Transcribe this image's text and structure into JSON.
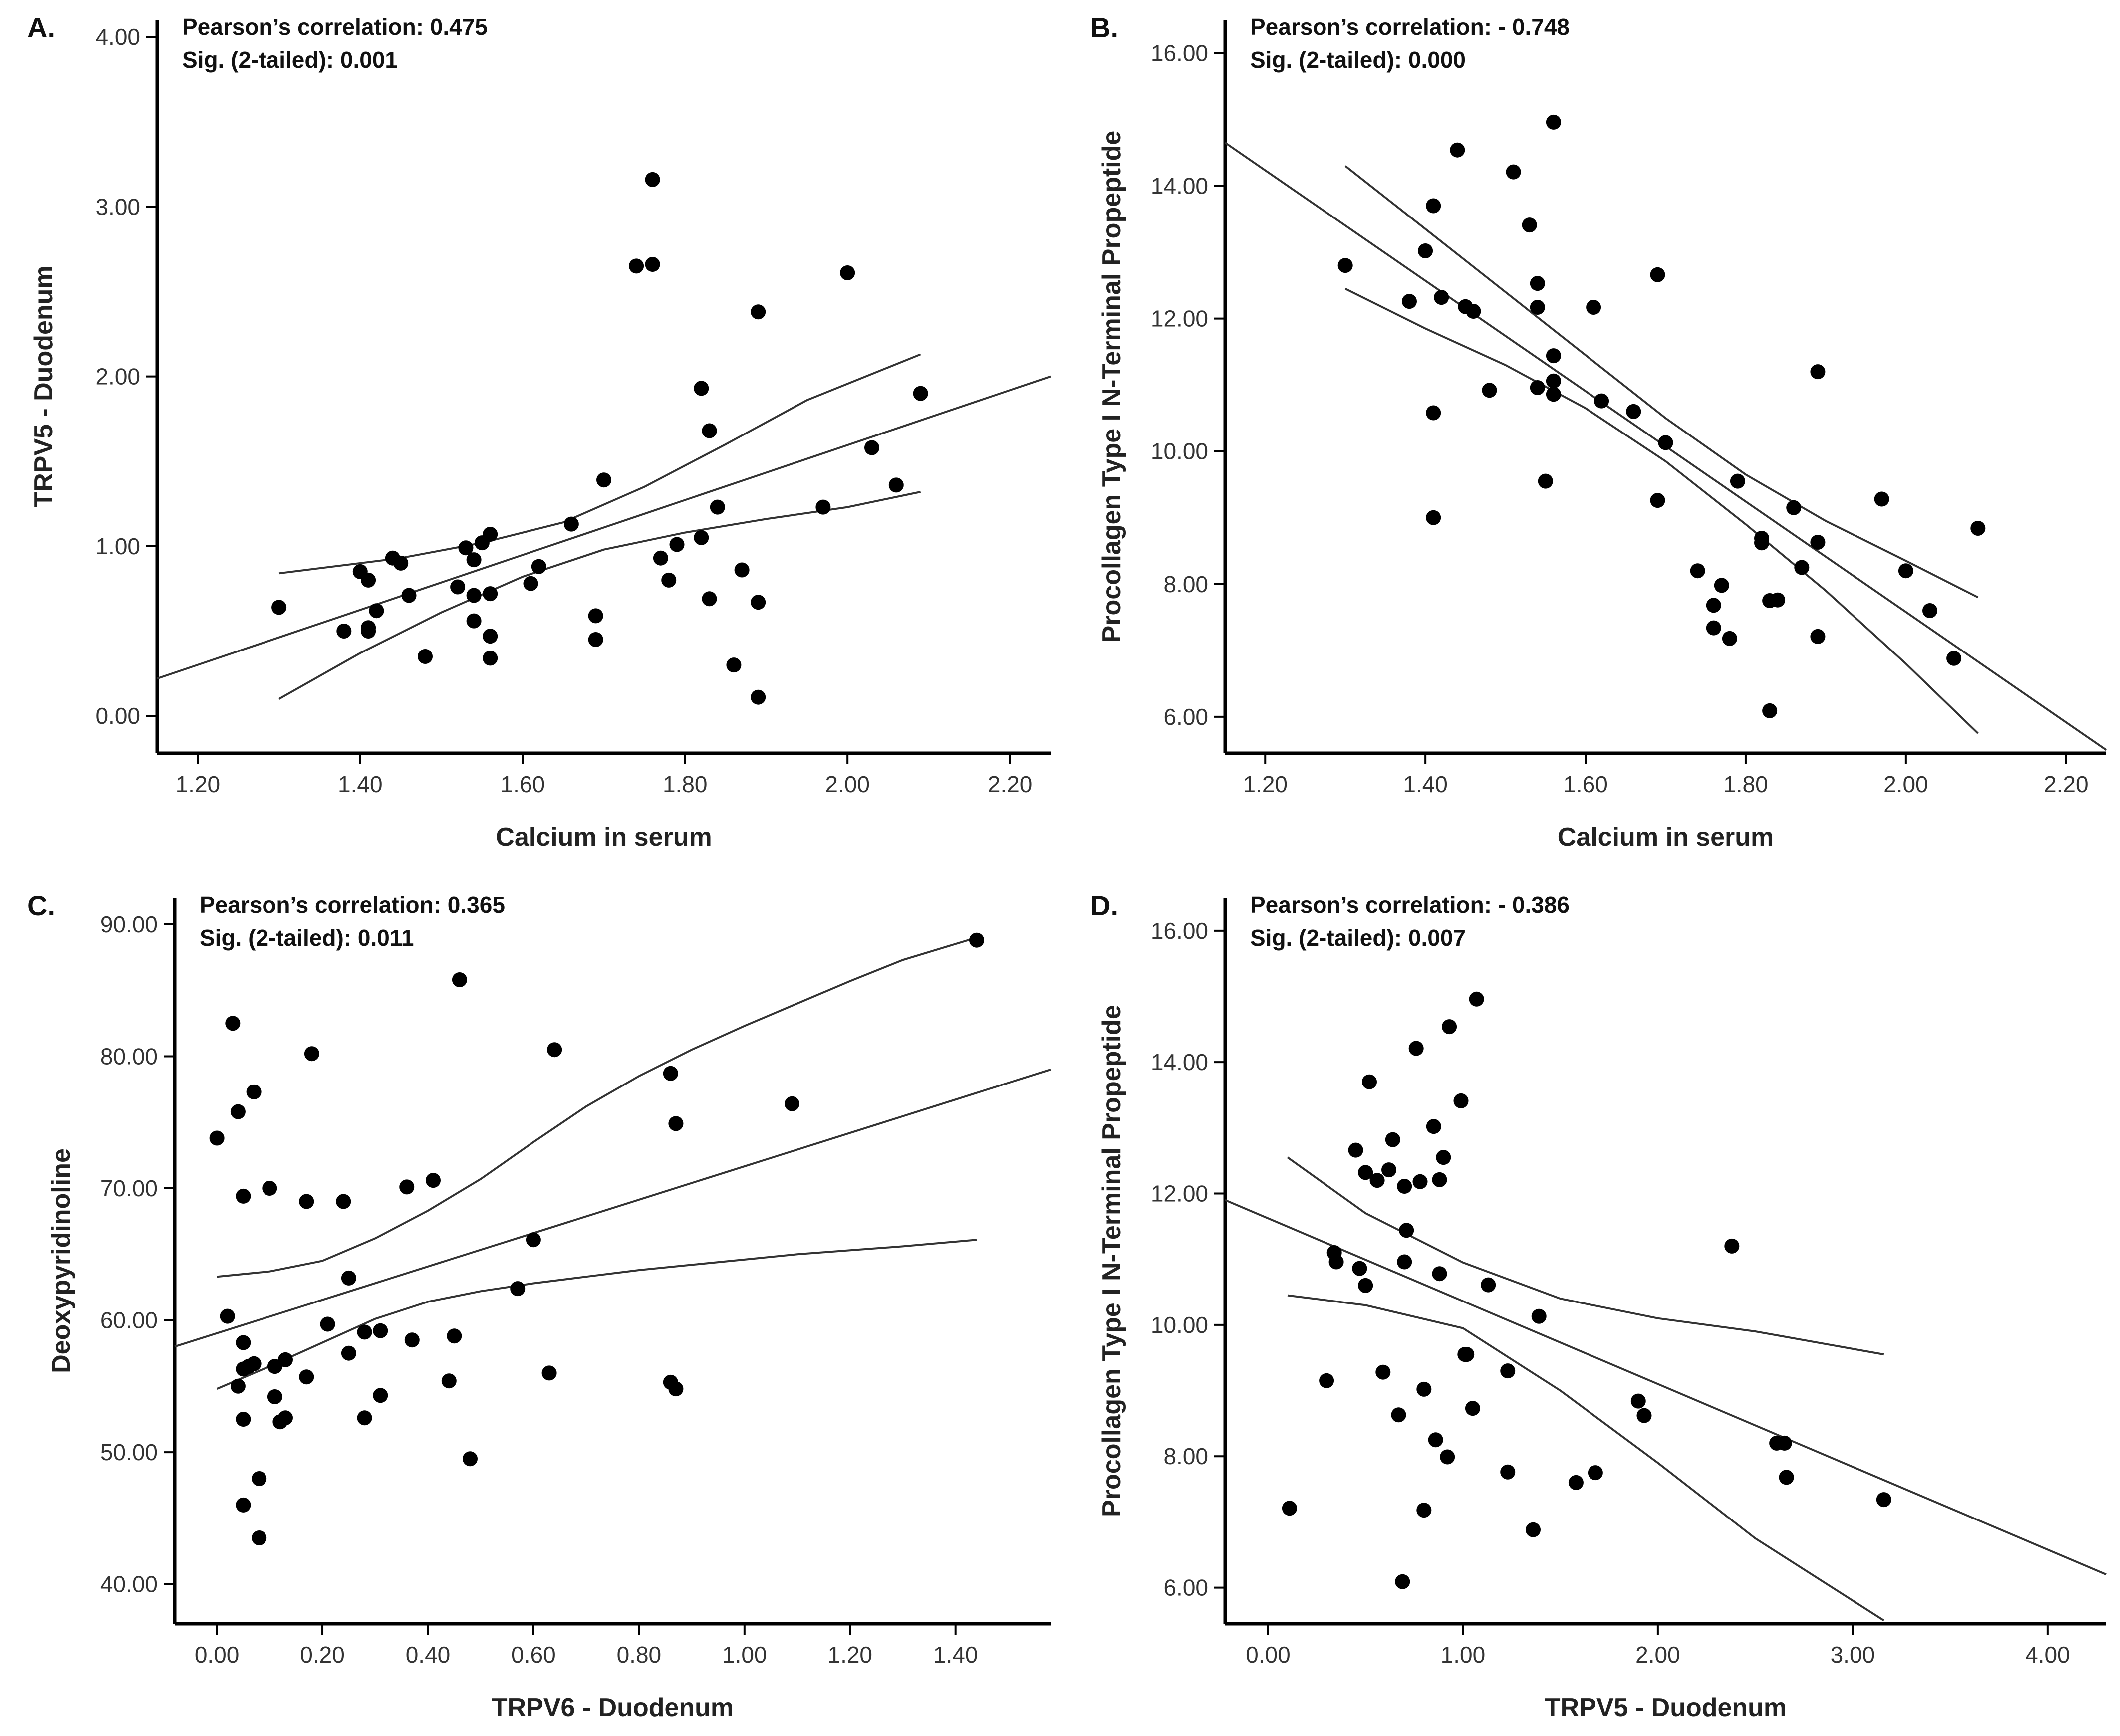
{
  "chart_data": [
    {
      "type": "scatter",
      "panel_label": "A.",
      "stat_line1": "Pearson’s correlation: 0.475",
      "stat_line2": "Sig. (2-tailed): 0.001",
      "xlabel": "Calcium in serum",
      "ylabel": "TRPV5 - Duodenum",
      "xlim": [
        1.15,
        2.25
      ],
      "ylim": [
        -0.22,
        4.1
      ],
      "xticks": [
        "1.20",
        "1.40",
        "1.60",
        "1.80",
        "2.00",
        "2.20"
      ],
      "yticks": [
        "0.00",
        "1.00",
        "2.00",
        "3.00",
        "4.00"
      ],
      "fit_line": [
        [
          1.15,
          0.22
        ],
        [
          2.25,
          2.0
        ]
      ],
      "ci_upper": [
        [
          1.3,
          0.84
        ],
        [
          1.45,
          0.93
        ],
        [
          1.55,
          1.02
        ],
        [
          1.65,
          1.14
        ],
        [
          1.75,
          1.35
        ],
        [
          1.85,
          1.6
        ],
        [
          1.95,
          1.86
        ],
        [
          2.09,
          2.13
        ]
      ],
      "ci_lower": [
        [
          1.3,
          0.1
        ],
        [
          1.4,
          0.37
        ],
        [
          1.5,
          0.61
        ],
        [
          1.6,
          0.82
        ],
        [
          1.7,
          0.98
        ],
        [
          1.8,
          1.08
        ],
        [
          1.9,
          1.16
        ],
        [
          2.0,
          1.23
        ],
        [
          2.09,
          1.32
        ]
      ],
      "points": [
        [
          1.3,
          0.64
        ],
        [
          1.38,
          0.5
        ],
        [
          1.4,
          0.85
        ],
        [
          1.41,
          0.8
        ],
        [
          1.41,
          0.52
        ],
        [
          1.41,
          0.5
        ],
        [
          1.42,
          0.62
        ],
        [
          1.44,
          0.93
        ],
        [
          1.45,
          0.9
        ],
        [
          1.46,
          0.71
        ],
        [
          1.48,
          0.35
        ],
        [
          1.52,
          0.76
        ],
        [
          1.53,
          0.99
        ],
        [
          1.54,
          0.56
        ],
        [
          1.54,
          0.71
        ],
        [
          1.54,
          0.92
        ],
        [
          1.55,
          1.02
        ],
        [
          1.56,
          1.07
        ],
        [
          1.56,
          0.72
        ],
        [
          1.56,
          0.47
        ],
        [
          1.56,
          0.34
        ],
        [
          1.61,
          0.78
        ],
        [
          1.62,
          0.88
        ],
        [
          1.66,
          1.13
        ],
        [
          1.69,
          0.59
        ],
        [
          1.69,
          0.45
        ],
        [
          1.7,
          1.39
        ],
        [
          1.74,
          2.65
        ],
        [
          1.76,
          2.66
        ],
        [
          1.76,
          3.16
        ],
        [
          1.77,
          0.93
        ],
        [
          1.78,
          0.8
        ],
        [
          1.79,
          1.01
        ],
        [
          1.82,
          1.93
        ],
        [
          1.82,
          1.05
        ],
        [
          1.83,
          1.68
        ],
        [
          1.83,
          0.69
        ],
        [
          1.84,
          1.23
        ],
        [
          1.86,
          0.3
        ],
        [
          1.87,
          0.86
        ],
        [
          1.89,
          2.38
        ],
        [
          1.89,
          0.67
        ],
        [
          1.89,
          0.11
        ],
        [
          1.97,
          1.23
        ],
        [
          2.0,
          2.61
        ],
        [
          2.03,
          1.58
        ],
        [
          2.06,
          1.36
        ],
        [
          2.09,
          1.9
        ]
      ]
    },
    {
      "type": "scatter",
      "panel_label": "B.",
      "stat_line1": "Pearson’s correlation: - 0.748",
      "stat_line2": "Sig. (2-tailed): 0.000",
      "xlabel": "Calcium in serum",
      "ylabel": "Procollagen Type I N-Terminal Propeptide",
      "xlim": [
        1.15,
        2.25
      ],
      "ylim": [
        5.45,
        16.5
      ],
      "xticks": [
        "1.20",
        "1.40",
        "1.60",
        "1.80",
        "2.00",
        "2.20"
      ],
      "yticks": [
        "6.00",
        "8.00",
        "10.00",
        "12.00",
        "14.00",
        "16.00"
      ],
      "fit_line": [
        [
          1.15,
          14.65
        ],
        [
          2.25,
          5.5
        ]
      ],
      "ci_upper": [
        [
          1.3,
          14.3
        ],
        [
          1.4,
          13.35
        ],
        [
          1.5,
          12.4
        ],
        [
          1.6,
          11.45
        ],
        [
          1.7,
          10.5
        ],
        [
          1.8,
          9.65
        ],
        [
          1.9,
          8.95
        ],
        [
          2.0,
          8.35
        ],
        [
          2.09,
          7.8
        ]
      ],
      "ci_lower": [
        [
          1.3,
          12.45
        ],
        [
          1.4,
          11.85
        ],
        [
          1.5,
          11.3
        ],
        [
          1.6,
          10.65
        ],
        [
          1.7,
          9.85
        ],
        [
          1.8,
          8.9
        ],
        [
          1.9,
          7.9
        ],
        [
          2.0,
          6.8
        ],
        [
          2.09,
          5.75
        ]
      ],
      "points": [
        [
          1.3,
          12.8
        ],
        [
          1.38,
          12.26
        ],
        [
          1.4,
          13.02
        ],
        [
          1.41,
          13.7
        ],
        [
          1.41,
          10.58
        ],
        [
          1.41,
          9.0
        ],
        [
          1.42,
          12.32
        ],
        [
          1.44,
          14.54
        ],
        [
          1.45,
          12.18
        ],
        [
          1.46,
          12.11
        ],
        [
          1.48,
          10.92
        ],
        [
          1.51,
          14.21
        ],
        [
          1.53,
          13.41
        ],
        [
          1.54,
          12.53
        ],
        [
          1.54,
          12.17
        ],
        [
          1.54,
          10.96
        ],
        [
          1.55,
          9.55
        ],
        [
          1.56,
          14.96
        ],
        [
          1.56,
          11.44
        ],
        [
          1.56,
          11.06
        ],
        [
          1.56,
          10.86
        ],
        [
          1.61,
          12.17
        ],
        [
          1.62,
          10.76
        ],
        [
          1.66,
          10.6
        ],
        [
          1.69,
          12.66
        ],
        [
          1.69,
          9.26
        ],
        [
          1.7,
          10.13
        ],
        [
          1.74,
          8.2
        ],
        [
          1.76,
          7.68
        ],
        [
          1.76,
          7.34
        ],
        [
          1.77,
          7.98
        ],
        [
          1.78,
          7.18
        ],
        [
          1.79,
          9.55
        ],
        [
          1.82,
          8.69
        ],
        [
          1.82,
          8.62
        ],
        [
          1.83,
          7.75
        ],
        [
          1.83,
          6.09
        ],
        [
          1.84,
          7.76
        ],
        [
          1.86,
          9.15
        ],
        [
          1.87,
          8.25
        ],
        [
          1.89,
          11.2
        ],
        [
          1.89,
          8.63
        ],
        [
          1.89,
          7.21
        ],
        [
          1.97,
          9.28
        ],
        [
          2.0,
          8.2
        ],
        [
          2.03,
          7.6
        ],
        [
          2.06,
          6.88
        ],
        [
          2.09,
          8.84
        ]
      ]
    },
    {
      "type": "scatter",
      "panel_label": "C.",
      "stat_line1": "Pearson’s correlation: 0.365",
      "stat_line2": "Sig. (2-tailed): 0.011",
      "xlabel": "TRPV6 - Duodenum",
      "ylabel": "Deoxypyridinoline",
      "xlim": [
        -0.08,
        1.58
      ],
      "ylim": [
        37,
        92
      ],
      "xticks": [
        "0.00",
        "0.20",
        "0.40",
        "0.60",
        "0.80",
        "1.00",
        "1.20",
        "1.40"
      ],
      "yticks": [
        "40.00",
        "50.00",
        "60.00",
        "70.00",
        "80.00",
        "90.00"
      ],
      "fit_line": [
        [
          -0.08,
          58.0
        ],
        [
          1.58,
          79.0
        ]
      ],
      "ci_upper": [
        [
          0.0,
          63.3
        ],
        [
          0.1,
          63.7
        ],
        [
          0.2,
          64.5
        ],
        [
          0.3,
          66.2
        ],
        [
          0.4,
          68.3
        ],
        [
          0.5,
          70.7
        ],
        [
          0.6,
          73.5
        ],
        [
          0.7,
          76.2
        ],
        [
          0.8,
          78.5
        ],
        [
          0.9,
          80.5
        ],
        [
          1.0,
          82.3
        ],
        [
          1.1,
          84.0
        ],
        [
          1.2,
          85.7
        ],
        [
          1.3,
          87.3
        ],
        [
          1.44,
          89.0
        ]
      ],
      "ci_lower": [
        [
          0.0,
          54.8
        ],
        [
          0.1,
          56.5
        ],
        [
          0.2,
          58.3
        ],
        [
          0.3,
          60.1
        ],
        [
          0.4,
          61.4
        ],
        [
          0.5,
          62.2
        ],
        [
          0.6,
          62.8
        ],
        [
          0.7,
          63.3
        ],
        [
          0.8,
          63.8
        ],
        [
          0.9,
          64.2
        ],
        [
          1.0,
          64.6
        ],
        [
          1.1,
          65.0
        ],
        [
          1.2,
          65.3
        ],
        [
          1.3,
          65.6
        ],
        [
          1.44,
          66.1
        ]
      ],
      "points": [
        [
          0.0,
          73.8
        ],
        [
          0.02,
          60.3
        ],
        [
          0.03,
          82.5
        ],
        [
          0.04,
          55.0
        ],
        [
          0.04,
          75.8
        ],
        [
          0.05,
          69.4
        ],
        [
          0.05,
          58.3
        ],
        [
          0.05,
          56.3
        ],
        [
          0.05,
          52.5
        ],
        [
          0.05,
          46.0
        ],
        [
          0.06,
          56.5
        ],
        [
          0.07,
          77.3
        ],
        [
          0.07,
          56.7
        ],
        [
          0.08,
          48.0
        ],
        [
          0.08,
          43.5
        ],
        [
          0.1,
          70.0
        ],
        [
          0.11,
          56.5
        ],
        [
          0.11,
          54.2
        ],
        [
          0.12,
          52.3
        ],
        [
          0.13,
          57.0
        ],
        [
          0.13,
          52.6
        ],
        [
          0.17,
          69.0
        ],
        [
          0.17,
          55.7
        ],
        [
          0.18,
          80.2
        ],
        [
          0.21,
          59.7
        ],
        [
          0.24,
          69.0
        ],
        [
          0.25,
          57.5
        ],
        [
          0.25,
          63.2
        ],
        [
          0.28,
          59.1
        ],
        [
          0.28,
          52.6
        ],
        [
          0.31,
          59.2
        ],
        [
          0.31,
          54.3
        ],
        [
          0.36,
          70.1
        ],
        [
          0.37,
          58.5
        ],
        [
          0.41,
          70.6
        ],
        [
          0.44,
          55.4
        ],
        [
          0.45,
          58.8
        ],
        [
          0.46,
          85.8
        ],
        [
          0.48,
          49.5
        ],
        [
          0.57,
          62.4
        ],
        [
          0.6,
          66.1
        ],
        [
          0.63,
          56.0
        ],
        [
          0.64,
          80.5
        ],
        [
          0.86,
          78.7
        ],
        [
          0.86,
          55.3
        ],
        [
          0.87,
          74.9
        ],
        [
          0.87,
          54.8
        ],
        [
          1.09,
          76.4
        ],
        [
          1.44,
          88.8
        ]
      ]
    },
    {
      "type": "scatter",
      "panel_label": "D.",
      "stat_line1": "Pearson’s correlation: - 0.386",
      "stat_line2": "Sig. (2-tailed): 0.007",
      "xlabel": "TRPV5 - Duodenum",
      "ylabel": "Procollagen Type I N-Terminal Propeptide",
      "xlim": [
        -0.22,
        4.3
      ],
      "ylim": [
        5.45,
        16.5
      ],
      "xticks": [
        "0.00",
        "1.00",
        "2.00",
        "3.00",
        "4.00"
      ],
      "yticks": [
        "6.00",
        "8.00",
        "10.00",
        "12.00",
        "14.00",
        "16.00"
      ],
      "fit_line": [
        [
          -0.22,
          11.9
        ],
        [
          4.3,
          6.2
        ]
      ],
      "ci_upper": [
        [
          0.1,
          12.55
        ],
        [
          0.5,
          11.7
        ],
        [
          1.0,
          10.95
        ],
        [
          1.5,
          10.4
        ],
        [
          2.0,
          10.1
        ],
        [
          2.5,
          9.9
        ],
        [
          3.16,
          9.55
        ]
      ],
      "ci_lower": [
        [
          0.1,
          10.45
        ],
        [
          0.5,
          10.3
        ],
        [
          1.0,
          9.95
        ],
        [
          1.5,
          9.0
        ],
        [
          2.0,
          7.9
        ],
        [
          2.5,
          6.75
        ],
        [
          3.16,
          5.5
        ]
      ],
      "points": [
        [
          0.11,
          7.21
        ],
        [
          0.3,
          9.15
        ],
        [
          0.34,
          11.1
        ],
        [
          0.35,
          10.96
        ],
        [
          0.45,
          12.66
        ],
        [
          0.47,
          10.86
        ],
        [
          0.5,
          10.6
        ],
        [
          0.5,
          12.32
        ],
        [
          0.52,
          13.7
        ],
        [
          0.56,
          12.2
        ],
        [
          0.59,
          9.28
        ],
        [
          0.62,
          12.36
        ],
        [
          0.64,
          12.82
        ],
        [
          0.67,
          8.63
        ],
        [
          0.69,
          6.09
        ],
        [
          0.7,
          12.11
        ],
        [
          0.7,
          10.96
        ],
        [
          0.71,
          11.44
        ],
        [
          0.76,
          14.21
        ],
        [
          0.78,
          12.18
        ],
        [
          0.8,
          9.02
        ],
        [
          0.8,
          7.18
        ],
        [
          0.85,
          13.02
        ],
        [
          0.86,
          8.25
        ],
        [
          0.88,
          10.78
        ],
        [
          0.88,
          12.21
        ],
        [
          0.9,
          12.55
        ],
        [
          0.92,
          7.99
        ],
        [
          0.93,
          14.54
        ],
        [
          0.99,
          13.41
        ],
        [
          1.01,
          9.55
        ],
        [
          1.02,
          9.55
        ],
        [
          1.05,
          8.73
        ],
        [
          1.07,
          14.96
        ],
        [
          1.13,
          10.61
        ],
        [
          1.23,
          9.3
        ],
        [
          1.23,
          7.76
        ],
        [
          1.36,
          6.88
        ],
        [
          1.39,
          10.13
        ],
        [
          1.58,
          7.6
        ],
        [
          1.68,
          7.75
        ],
        [
          1.9,
          8.84
        ],
        [
          1.93,
          8.62
        ],
        [
          2.38,
          11.2
        ],
        [
          2.61,
          8.2
        ],
        [
          2.65,
          8.2
        ],
        [
          2.66,
          7.68
        ],
        [
          3.16,
          7.34
        ]
      ]
    }
  ]
}
